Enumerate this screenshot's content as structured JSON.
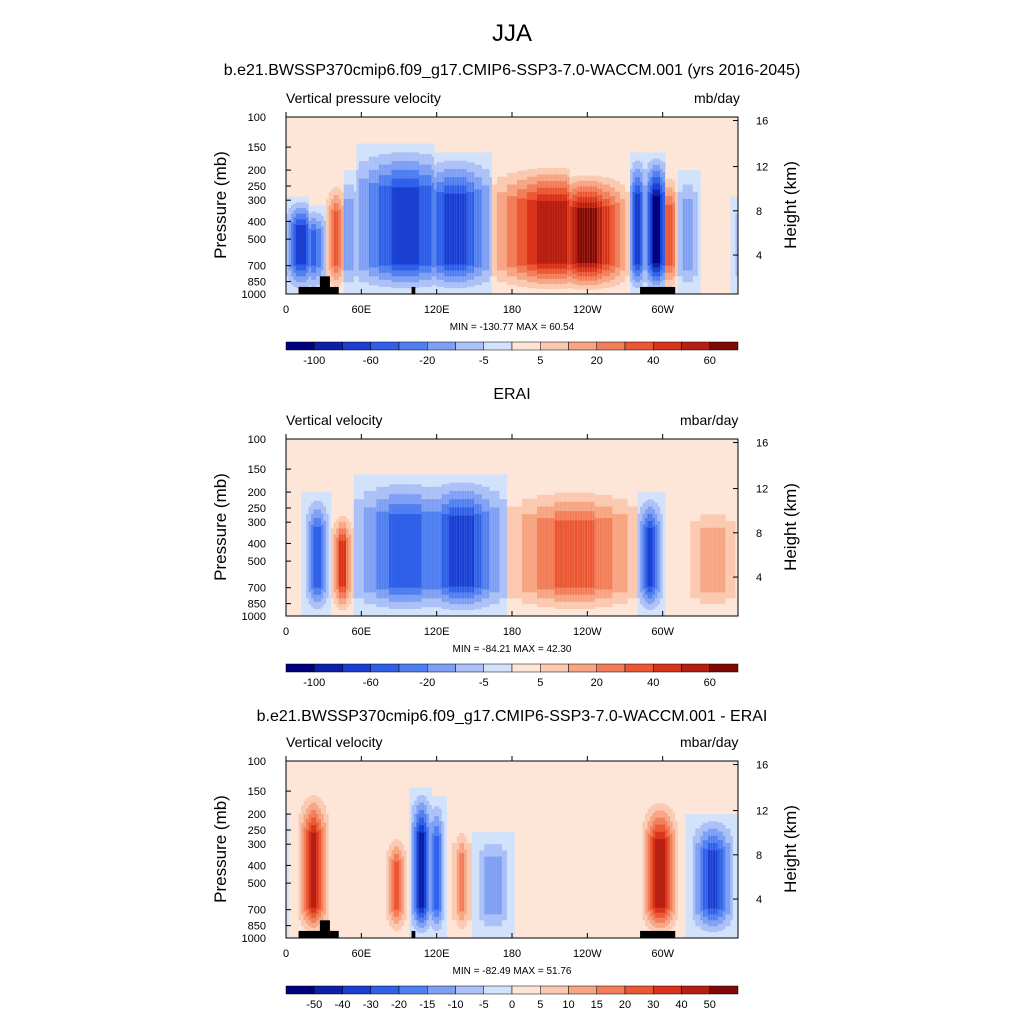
{
  "title": "JJA",
  "colors": {
    "neg": [
      "#00007f",
      "#0b1fa8",
      "#1a3fd0",
      "#2f5fe8",
      "#4f7ff0",
      "#7f9ff4",
      "#aac0f7",
      "#d3e2fb"
    ],
    "pos": [
      "#fde6d8",
      "#fbc8b0",
      "#f7a482",
      "#f27d58",
      "#eb5633",
      "#d9321b",
      "#b51e10",
      "#7f0a05"
    ],
    "topo": "#000000"
  },
  "chart_data": [
    {
      "type": "heatmap",
      "title": "b.e21.BWSSP370cmip6.f09_g17.CMIP6-SSP3-7.0-WACCM.001 (yrs 2016-2045)",
      "left_label": "Vertical pressure velocity",
      "units": "mb/day",
      "ylabel": "Pressure (mb)",
      "ylabel_right": "Height (km)",
      "x_ticks": [
        "0",
        "60E",
        "120E",
        "180",
        "120W",
        "60W"
      ],
      "y_ticks": [
        "100",
        "150",
        "200",
        "250",
        "300",
        "400",
        "500",
        "700",
        "850",
        "1000"
      ],
      "y_ticks_right": [
        "16",
        "12",
        "8",
        "4"
      ],
      "minmax": "MIN = -130.77  MAX =  60.54",
      "colorbar_labels": [
        "-100",
        "-60",
        "-20",
        "-5",
        "5",
        "20",
        "40",
        "60"
      ],
      "ylim": [
        1000,
        100
      ],
      "features": [
        {
          "lon": 12,
          "w": 8,
          "v": -6,
          "top": 0.45
        },
        {
          "lon": 22,
          "w": 6,
          "v": -5,
          "top": 0.5
        },
        {
          "lon": 40,
          "w": 5,
          "v": 5,
          "top": 0.35
        },
        {
          "lon": 50,
          "w": 8,
          "v": -3,
          "top": 0.3
        },
        {
          "lon": 95,
          "w": 28,
          "v": -6,
          "top": 0.15
        },
        {
          "lon": 135,
          "w": 20,
          "v": -6,
          "top": 0.2
        },
        {
          "lon": 212,
          "w": 30,
          "v": 7,
          "top": 0.25
        },
        {
          "lon": 240,
          "w": 20,
          "v": 8,
          "top": 0.3
        },
        {
          "lon": 280,
          "w": 4,
          "v": -6,
          "top": 0.2
        },
        {
          "lon": 295,
          "w": 6,
          "v": -8,
          "top": 0.2
        },
        {
          "lon": 305,
          "w": 5,
          "v": 5,
          "top": 0.3
        },
        {
          "lon": 320,
          "w": 6,
          "v": -3,
          "top": 0.3
        }
      ],
      "topography": [
        {
          "lon0": 10,
          "lon1": 42,
          "top": 0.96
        },
        {
          "lon0": 27,
          "lon1": 35,
          "top": 0.9
        },
        {
          "lon0": 100,
          "lon1": 103,
          "top": 0.96
        },
        {
          "lon0": 282,
          "lon1": 310,
          "top": 0.96
        }
      ]
    },
    {
      "type": "heatmap",
      "title": "ERAI",
      "left_label": "Vertical velocity",
      "units": "mbar/day",
      "ylabel": "Pressure (mb)",
      "ylabel_right": "Height (km)",
      "x_ticks": [
        "0",
        "60E",
        "120E",
        "180",
        "120W",
        "60W"
      ],
      "y_ticks": [
        "100",
        "150",
        "200",
        "250",
        "300",
        "400",
        "500",
        "700",
        "850",
        "1000"
      ],
      "y_ticks_right": [
        "16",
        "12",
        "8",
        "4"
      ],
      "minmax": "MIN = -84.21  MAX =  42.30",
      "colorbar_labels": [
        "-100",
        "-60",
        "-20",
        "-5",
        "5",
        "20",
        "40",
        "60"
      ],
      "ylim": [
        1000,
        100
      ],
      "features": [
        {
          "lon": 25,
          "w": 6,
          "v": -5,
          "top": 0.3
        },
        {
          "lon": 45,
          "w": 5,
          "v": 6,
          "top": 0.4
        },
        {
          "lon": 95,
          "w": 28,
          "v": -5,
          "top": 0.2
        },
        {
          "lon": 140,
          "w": 22,
          "v": -6,
          "top": 0.2
        },
        {
          "lon": 230,
          "w": 35,
          "v": 5,
          "top": 0.25
        },
        {
          "lon": 290,
          "w": 6,
          "v": -6,
          "top": 0.3
        },
        {
          "lon": 340,
          "w": 15,
          "v": 3,
          "top": 0.35
        }
      ],
      "topography": []
    },
    {
      "type": "heatmap",
      "title": "b.e21.BWSSP370cmip6.f09_g17.CMIP6-SSP3-7.0-WACCM.001 - ERAI",
      "left_label": "Vertical velocity",
      "units": "mbar/day",
      "ylabel": "Pressure (mb)",
      "ylabel_right": "Height (km)",
      "x_ticks": [
        "0",
        "60E",
        "120E",
        "180",
        "120W",
        "60W"
      ],
      "y_ticks": [
        "100",
        "150",
        "200",
        "250",
        "300",
        "400",
        "500",
        "700",
        "850",
        "1000"
      ],
      "y_ticks_right": [
        "16",
        "12",
        "8",
        "4"
      ],
      "minmax": "MIN = -82.49  MAX =  51.76",
      "colorbar_labels": [
        "-50",
        "-40",
        "-30",
        "-20",
        "-15",
        "-10",
        "-5",
        "0",
        "5",
        "10",
        "15",
        "20",
        "30",
        "40",
        "50"
      ],
      "ylim": [
        1000,
        100
      ],
      "features": [
        {
          "lon": 22,
          "w": 7,
          "v": 7,
          "top": 0.15
        },
        {
          "lon": 88,
          "w": 5,
          "v": 5,
          "top": 0.4
        },
        {
          "lon": 108,
          "w": 5,
          "v": -7,
          "top": 0.15
        },
        {
          "lon": 120,
          "w": 4,
          "v": -5,
          "top": 0.2
        },
        {
          "lon": 140,
          "w": 5,
          "v": 4,
          "top": 0.35
        },
        {
          "lon": 165,
          "w": 10,
          "v": -3,
          "top": 0.4
        },
        {
          "lon": 298,
          "w": 8,
          "v": 7,
          "top": 0.2
        },
        {
          "lon": 340,
          "w": 10,
          "v": -6,
          "top": 0.3
        }
      ],
      "topography": [
        {
          "lon0": 10,
          "lon1": 42,
          "top": 0.96
        },
        {
          "lon0": 27,
          "lon1": 35,
          "top": 0.9
        },
        {
          "lon0": 100,
          "lon1": 103,
          "top": 0.96
        },
        {
          "lon0": 282,
          "lon1": 310,
          "top": 0.96
        }
      ]
    }
  ]
}
